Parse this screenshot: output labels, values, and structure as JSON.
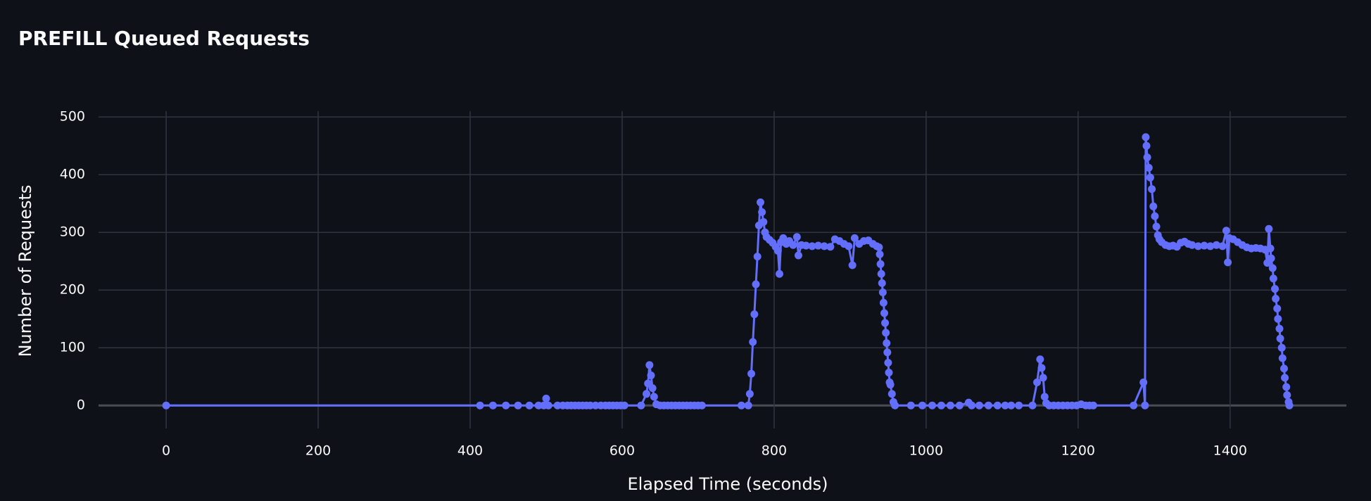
{
  "chart_data": {
    "type": "line",
    "title": "PREFILL Queued Requests",
    "x_label": "Elapsed Time (seconds)",
    "y_label": "Number of Requests",
    "color": "#636efa",
    "grid": true,
    "markers": true,
    "xlim": [
      -89,
      1553
    ],
    "ylim": [
      -40,
      510
    ],
    "xticks": [
      0,
      200,
      400,
      600,
      800,
      1000,
      1200,
      1400
    ],
    "yticks": [
      0,
      100,
      200,
      300,
      400,
      500
    ],
    "x": [
      0,
      413,
      430,
      447,
      463,
      478,
      490,
      497,
      500,
      503,
      515,
      522,
      528,
      533,
      538,
      543,
      548,
      553,
      558,
      565,
      572,
      578,
      583,
      588,
      593,
      598,
      603,
      625,
      632,
      634,
      636,
      638,
      640,
      642,
      645,
      650,
      655,
      660,
      665,
      670,
      675,
      680,
      685,
      690,
      695,
      700,
      705,
      757,
      766,
      768,
      770,
      772,
      774,
      776,
      778,
      780,
      782,
      784,
      786,
      788,
      790,
      794,
      798,
      802,
      805,
      807,
      809,
      812,
      816,
      820,
      825,
      830,
      832,
      836,
      842,
      850,
      858,
      866,
      874,
      880,
      886,
      892,
      898,
      903,
      906,
      912,
      918,
      924,
      930,
      935,
      938,
      939,
      940,
      941,
      942,
      943,
      944,
      945,
      946,
      947,
      948,
      949,
      950,
      951,
      952,
      953,
      955,
      957,
      959,
      980,
      995,
      1008,
      1020,
      1032,
      1044,
      1056,
      1060,
      1070,
      1082,
      1094,
      1104,
      1112,
      1122,
      1140,
      1146,
      1150,
      1152,
      1154,
      1156,
      1158,
      1162,
      1168,
      1174,
      1180,
      1186,
      1192,
      1198,
      1204,
      1210,
      1215,
      1220,
      1273,
      1286,
      1288,
      1289,
      1290,
      1291,
      1293,
      1295,
      1297,
      1299,
      1301,
      1303,
      1305,
      1307,
      1310,
      1315,
      1320,
      1325,
      1330,
      1335,
      1340,
      1345,
      1350,
      1358,
      1366,
      1374,
      1382,
      1390,
      1395,
      1397,
      1399,
      1404,
      1410,
      1416,
      1422,
      1428,
      1434,
      1440,
      1446,
      1449,
      1451,
      1453,
      1454,
      1456,
      1457,
      1459,
      1460,
      1462,
      1463,
      1465,
      1466,
      1468,
      1469,
      1471,
      1472,
      1474,
      1475,
      1477,
      1478
    ],
    "values": [
      0,
      0,
      0,
      0,
      0,
      0,
      0,
      0,
      12,
      0,
      0,
      0,
      0,
      0,
      0,
      0,
      0,
      0,
      0,
      0,
      0,
      0,
      0,
      0,
      0,
      0,
      0,
      0,
      20,
      38,
      70,
      52,
      30,
      15,
      2,
      0,
      0,
      0,
      0,
      0,
      0,
      0,
      0,
      0,
      0,
      0,
      0,
      0,
      0,
      20,
      55,
      110,
      158,
      210,
      258,
      312,
      352,
      335,
      318,
      300,
      292,
      287,
      282,
      275,
      268,
      228,
      283,
      290,
      280,
      285,
      278,
      292,
      260,
      278,
      277,
      276,
      277,
      276,
      275,
      288,
      285,
      280,
      276,
      243,
      290,
      280,
      285,
      286,
      280,
      276,
      274,
      262,
      245,
      228,
      212,
      196,
      178,
      160,
      143,
      126,
      108,
      92,
      74,
      57,
      40,
      36,
      20,
      6,
      0,
      0,
      0,
      0,
      0,
      0,
      0,
      5,
      0,
      0,
      0,
      0,
      0,
      0,
      0,
      0,
      40,
      80,
      65,
      48,
      15,
      4,
      0,
      0,
      0,
      0,
      0,
      0,
      0,
      2,
      0,
      0,
      0,
      0,
      40,
      0,
      465,
      450,
      430,
      412,
      395,
      375,
      345,
      328,
      310,
      295,
      288,
      283,
      278,
      276,
      277,
      275,
      282,
      284,
      280,
      278,
      276,
      277,
      276,
      278,
      276,
      303,
      248,
      290,
      288,
      283,
      278,
      274,
      272,
      273,
      272,
      270,
      247,
      306,
      272,
      255,
      238,
      220,
      202,
      185,
      168,
      150,
      133,
      116,
      100,
      82,
      64,
      48,
      32,
      18,
      6,
      0
    ]
  }
}
